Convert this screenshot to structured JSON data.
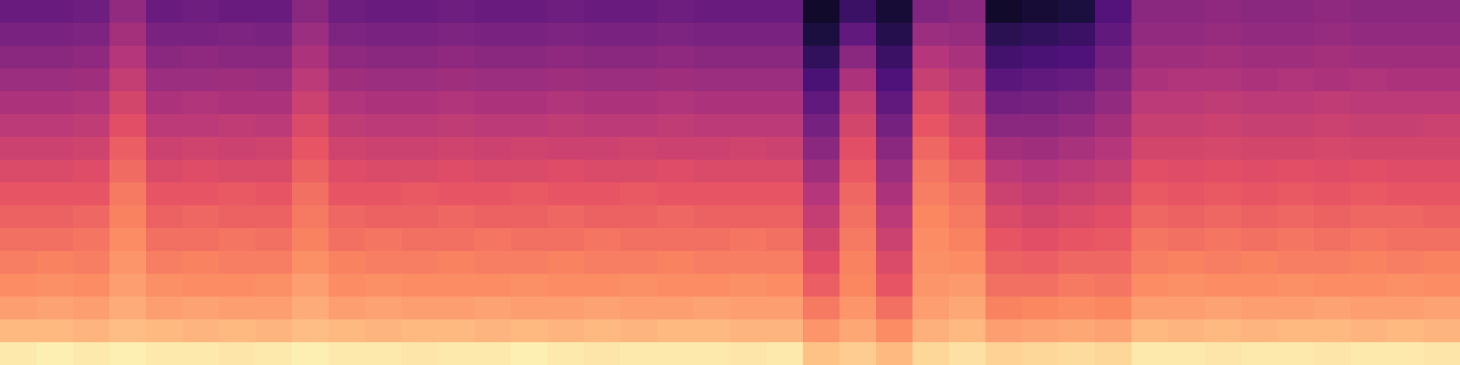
{
  "chart_data": {
    "type": "heatmap",
    "tick_labels": false,
    "zlim": [
      0,
      100
    ],
    "z": [
      [
        96,
        97,
        96,
        97,
        96,
        96,
        95,
        96,
        97,
        96,
        96,
        95,
        96,
        96,
        97,
        96,
        95,
        96,
        96,
        96,
        95,
        96,
        88,
        90,
        86,
        92,
        94,
        91,
        92,
        93,
        92,
        96,
        96,
        95,
        96,
        96,
        95,
        96,
        96,
        95
      ],
      [
        86,
        86,
        85,
        87,
        86,
        85,
        86,
        85,
        87,
        86,
        85,
        86,
        86,
        85,
        86,
        85,
        86,
        85,
        86,
        86,
        85,
        85,
        78,
        82,
        76,
        84,
        86,
        80,
        81,
        82,
        81,
        86,
        85,
        86,
        85,
        86,
        86,
        85,
        86,
        85
      ],
      [
        80,
        81,
        80,
        83,
        80,
        81,
        80,
        80,
        83,
        80,
        81,
        80,
        80,
        81,
        80,
        80,
        81,
        80,
        80,
        81,
        80,
        80,
        72,
        78,
        70,
        80,
        82,
        74,
        75,
        76,
        75,
        80,
        80,
        81,
        80,
        80,
        81,
        80,
        80,
        81
      ],
      [
        76,
        77,
        76,
        80,
        77,
        76,
        76,
        77,
        80,
        76,
        77,
        76,
        76,
        76,
        77,
        76,
        76,
        77,
        76,
        76,
        77,
        76,
        66,
        75,
        64,
        78,
        79,
        70,
        70,
        72,
        71,
        76,
        77,
        76,
        76,
        77,
        76,
        76,
        77,
        76
      ],
      [
        73,
        74,
        73,
        78,
        73,
        74,
        73,
        73,
        77,
        74,
        73,
        73,
        74,
        73,
        73,
        74,
        73,
        73,
        74,
        73,
        73,
        73,
        62,
        74,
        60,
        77,
        76,
        67,
        66,
        68,
        68,
        73,
        74,
        73,
        74,
        73,
        73,
        74,
        73,
        74
      ],
      [
        70,
        70,
        71,
        76,
        70,
        70,
        71,
        70,
        74,
        70,
        71,
        70,
        70,
        71,
        70,
        70,
        71,
        70,
        70,
        70,
        71,
        70,
        58,
        72,
        56,
        76,
        74,
        64,
        62,
        64,
        65,
        71,
        70,
        71,
        70,
        71,
        70,
        71,
        70,
        70
      ],
      [
        67,
        67,
        68,
        74,
        67,
        68,
        67,
        67,
        72,
        68,
        67,
        67,
        68,
        67,
        67,
        68,
        67,
        67,
        68,
        67,
        67,
        67,
        54,
        70,
        52,
        75,
        72,
        60,
        58,
        60,
        62,
        68,
        67,
        68,
        67,
        68,
        67,
        68,
        68,
        67
      ],
      [
        64,
        64,
        64,
        72,
        64,
        64,
        65,
        64,
        70,
        64,
        64,
        65,
        64,
        64,
        65,
        64,
        64,
        65,
        64,
        64,
        64,
        64,
        50,
        68,
        48,
        73,
        70,
        56,
        54,
        56,
        58,
        65,
        64,
        65,
        64,
        65,
        64,
        65,
        64,
        64
      ],
      [
        60,
        60,
        61,
        69,
        60,
        61,
        60,
        60,
        67,
        61,
        60,
        60,
        61,
        60,
        60,
        61,
        60,
        60,
        61,
        60,
        60,
        60,
        45,
        65,
        44,
        71,
        67,
        52,
        50,
        52,
        54,
        62,
        61,
        62,
        61,
        62,
        61,
        62,
        61,
        61
      ],
      [
        56,
        56,
        57,
        66,
        56,
        57,
        56,
        57,
        64,
        57,
        56,
        56,
        57,
        56,
        57,
        56,
        56,
        57,
        56,
        56,
        57,
        56,
        40,
        62,
        40,
        68,
        63,
        46,
        45,
        47,
        50,
        58,
        58,
        59,
        58,
        58,
        59,
        58,
        58,
        58
      ],
      [
        52,
        52,
        53,
        62,
        52,
        52,
        53,
        52,
        60,
        53,
        52,
        52,
        53,
        52,
        52,
        53,
        52,
        52,
        53,
        52,
        52,
        52,
        35,
        58,
        35,
        64,
        59,
        40,
        40,
        42,
        46,
        55,
        55,
        56,
        55,
        55,
        56,
        55,
        55,
        56
      ],
      [
        48,
        48,
        49,
        58,
        48,
        49,
        48,
        48,
        56,
        49,
        48,
        48,
        49,
        48,
        48,
        49,
        48,
        48,
        49,
        48,
        48,
        48,
        30,
        54,
        30,
        60,
        55,
        34,
        35,
        37,
        42,
        52,
        52,
        53,
        52,
        52,
        53,
        52,
        52,
        52
      ],
      [
        44,
        44,
        45,
        54,
        44,
        44,
        45,
        44,
        52,
        45,
        44,
        44,
        45,
        44,
        44,
        45,
        44,
        44,
        45,
        44,
        44,
        44,
        24,
        48,
        25,
        55,
        51,
        28,
        30,
        31,
        38,
        48,
        49,
        49,
        48,
        49,
        48,
        49,
        48,
        48
      ],
      [
        40,
        40,
        41,
        50,
        40,
        41,
        40,
        40,
        48,
        41,
        40,
        40,
        41,
        40,
        40,
        41,
        40,
        40,
        41,
        40,
        40,
        40,
        18,
        40,
        20,
        50,
        47,
        22,
        24,
        25,
        34,
        45,
        45,
        46,
        45,
        45,
        46,
        45,
        45,
        45
      ],
      [
        36,
        36,
        37,
        46,
        36,
        36,
        37,
        36,
        44,
        37,
        36,
        36,
        37,
        36,
        36,
        37,
        36,
        36,
        37,
        36,
        36,
        36,
        12,
        30,
        15,
        44,
        43,
        16,
        18,
        20,
        30,
        42,
        42,
        43,
        42,
        42,
        43,
        42,
        42,
        42
      ],
      [
        32,
        32,
        33,
        42,
        32,
        33,
        32,
        32,
        40,
        33,
        32,
        32,
        33,
        32,
        32,
        33,
        32,
        32,
        33,
        32,
        32,
        32,
        8,
        20,
        10,
        38,
        40,
        8,
        10,
        12,
        26,
        40,
        40,
        41,
        40,
        40,
        41,
        40,
        40,
        40
      ]
    ]
  }
}
